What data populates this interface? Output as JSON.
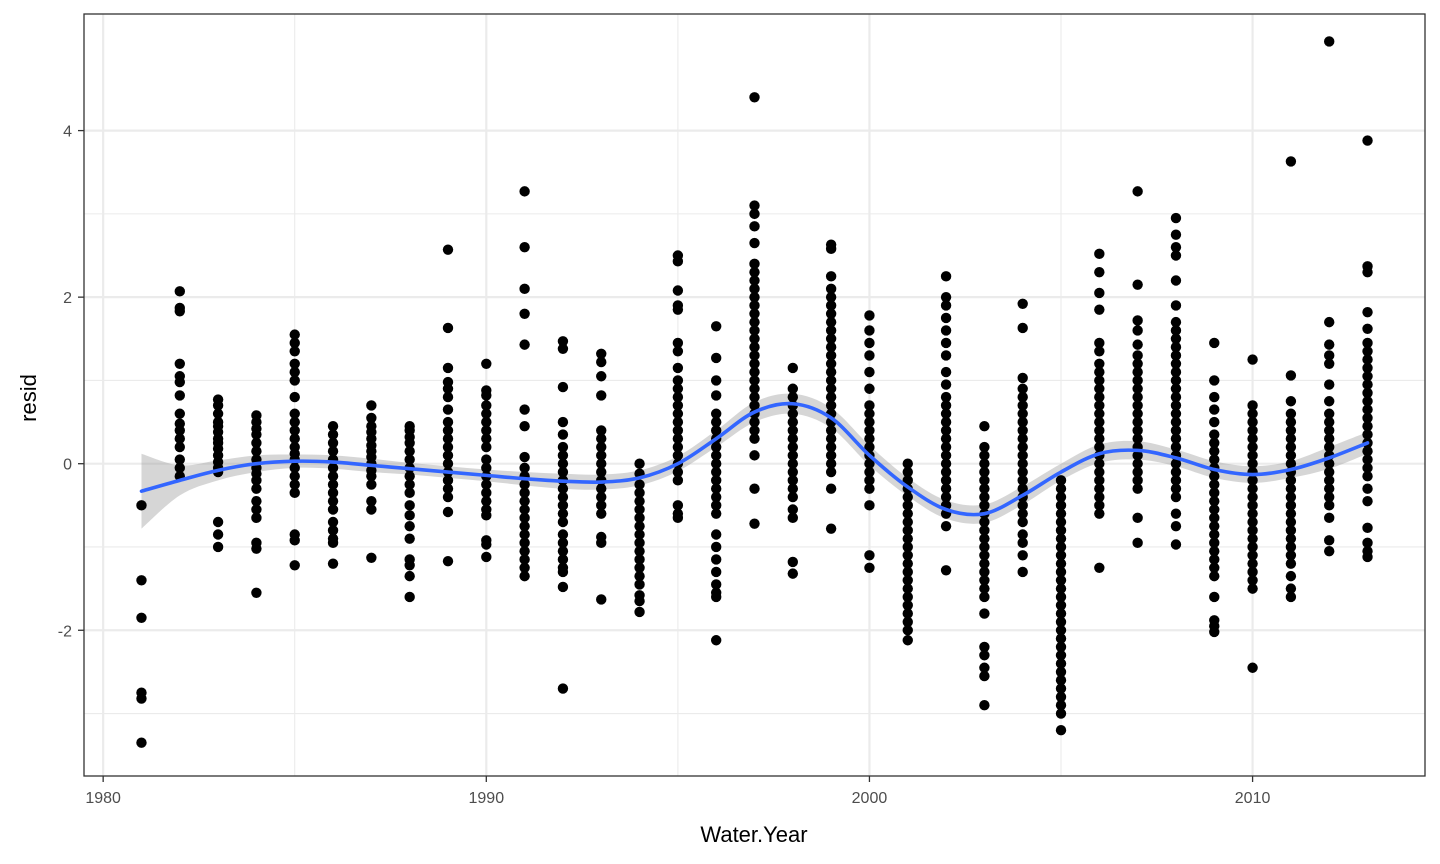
{
  "chart_data": {
    "type": "scatter",
    "xlabel": "Water.Year",
    "ylabel": "resid",
    "xlim": [
      1979.5,
      2014.5
    ],
    "ylim": [
      -3.75,
      5.4
    ],
    "x_ticks": [
      1980,
      1990,
      2000,
      2010
    ],
    "x_tick_labels": [
      "1980",
      "1990",
      "2000",
      "2010"
    ],
    "y_ticks": [
      -2,
      0,
      2,
      4
    ],
    "y_tick_labels": [
      "-2",
      "0",
      "2",
      "4"
    ],
    "grid": true,
    "points": [
      {
        "year": 1981,
        "resid": [
          -0.5,
          -1.4,
          -1.85,
          -2.75,
          -2.82,
          -3.35
        ]
      },
      {
        "year": 1982,
        "resid": [
          2.07,
          1.87,
          1.83,
          1.2,
          1.05,
          0.98,
          0.82,
          0.6,
          0.48,
          0.4,
          0.3,
          0.2,
          0.05,
          -0.05,
          -0.15
        ]
      },
      {
        "year": 1983,
        "resid": [
          0.77,
          0.7,
          0.6,
          0.5,
          0.45,
          0.38,
          0.3,
          0.25,
          0.18,
          0.1,
          0.02,
          -0.05,
          -0.1,
          -0.7,
          -0.85,
          -1.0
        ]
      },
      {
        "year": 1984,
        "resid": [
          0.58,
          0.5,
          0.42,
          0.35,
          0.25,
          0.15,
          0.05,
          -0.05,
          -0.12,
          -0.2,
          -0.3,
          -0.45,
          -0.55,
          -0.65,
          -0.95,
          -1.02,
          -1.55
        ]
      },
      {
        "year": 1985,
        "resid": [
          1.55,
          1.45,
          1.35,
          1.2,
          1.1,
          1.0,
          0.8,
          0.6,
          0.5,
          0.4,
          0.3,
          0.2,
          0.12,
          0.05,
          -0.05,
          -0.15,
          -0.25,
          -0.35,
          -0.85,
          -0.92,
          -1.22
        ]
      },
      {
        "year": 1986,
        "resid": [
          0.45,
          0.35,
          0.25,
          0.15,
          0.05,
          -0.05,
          -0.15,
          -0.25,
          -0.35,
          -0.45,
          -0.55,
          -0.7,
          -0.8,
          -0.9,
          -0.95,
          -1.2
        ]
      },
      {
        "year": 1987,
        "resid": [
          0.7,
          0.55,
          0.45,
          0.38,
          0.3,
          0.22,
          0.15,
          0.08,
          0.0,
          -0.08,
          -0.15,
          -0.25,
          -0.45,
          -0.55,
          -1.13
        ]
      },
      {
        "year": 1988,
        "resid": [
          0.45,
          0.4,
          0.32,
          0.25,
          0.15,
          0.05,
          -0.05,
          -0.15,
          -0.25,
          -0.35,
          -0.5,
          -0.62,
          -0.75,
          -0.9,
          -1.15,
          -1.22,
          -1.35,
          -1.6
        ]
      },
      {
        "year": 1989,
        "resid": [
          2.57,
          1.63,
          1.15,
          0.98,
          0.9,
          0.8,
          0.65,
          0.5,
          0.4,
          0.3,
          0.2,
          0.1,
          0.0,
          -0.1,
          -0.2,
          -0.3,
          -0.4,
          -0.58,
          -1.17
        ]
      },
      {
        "year": 1990,
        "resid": [
          1.2,
          0.88,
          0.82,
          0.7,
          0.6,
          0.5,
          0.4,
          0.3,
          0.2,
          0.05,
          -0.05,
          -0.15,
          -0.25,
          -0.35,
          -0.45,
          -0.55,
          -0.62,
          -0.92,
          -0.97,
          -1.12
        ]
      },
      {
        "year": 1991,
        "resid": [
          3.27,
          2.6,
          2.1,
          1.8,
          1.43,
          0.65,
          0.45,
          0.08,
          -0.05,
          -0.15,
          -0.25,
          -0.35,
          -0.45,
          -0.55,
          -0.65,
          -0.75,
          -0.85,
          -0.95,
          -1.05,
          -1.15,
          -1.25,
          -1.35
        ]
      },
      {
        "year": 1992,
        "resid": [
          1.47,
          1.38,
          0.92,
          0.5,
          0.35,
          0.2,
          0.1,
          0.0,
          -0.1,
          -0.2,
          -0.3,
          -0.4,
          -0.5,
          -0.6,
          -0.7,
          -0.85,
          -0.95,
          -1.05,
          -1.15,
          -1.25,
          -1.3,
          -1.48,
          -2.7
        ]
      },
      {
        "year": 1993,
        "resid": [
          1.32,
          1.22,
          1.05,
          0.82,
          0.4,
          0.3,
          0.2,
          0.1,
          0.0,
          -0.1,
          -0.2,
          -0.3,
          -0.4,
          -0.5,
          -0.6,
          -0.88,
          -0.95,
          -1.63
        ]
      },
      {
        "year": 1994,
        "resid": [
          0.0,
          -0.12,
          -0.25,
          -0.35,
          -0.45,
          -0.55,
          -0.65,
          -0.75,
          -0.85,
          -0.95,
          -1.05,
          -1.15,
          -1.25,
          -1.35,
          -1.45,
          -1.58,
          -1.65,
          -1.78
        ]
      },
      {
        "year": 1995,
        "resid": [
          2.5,
          2.43,
          2.08,
          1.9,
          1.85,
          1.45,
          1.35,
          1.15,
          1.0,
          0.9,
          0.8,
          0.7,
          0.6,
          0.5,
          0.4,
          0.3,
          0.2,
          0.1,
          0.0,
          -0.1,
          -0.2,
          -0.5,
          -0.6,
          -0.65
        ]
      },
      {
        "year": 1996,
        "resid": [
          1.65,
          1.27,
          1.0,
          0.82,
          0.6,
          0.5,
          0.4,
          0.3,
          0.2,
          0.1,
          0.0,
          -0.1,
          -0.2,
          -0.3,
          -0.4,
          -0.5,
          -0.6,
          -0.85,
          -1.0,
          -1.15,
          -1.3,
          -1.45,
          -1.55,
          -1.6,
          -2.12
        ]
      },
      {
        "year": 1997,
        "resid": [
          4.4,
          3.1,
          3.0,
          2.85,
          2.65,
          2.4,
          2.3,
          2.2,
          2.1,
          2.0,
          1.9,
          1.8,
          1.7,
          1.6,
          1.5,
          1.4,
          1.3,
          1.2,
          1.1,
          1.0,
          0.9,
          0.8,
          0.7,
          0.6,
          0.5,
          0.4,
          0.3,
          0.1,
          -0.3,
          -0.72
        ]
      },
      {
        "year": 1998,
        "resid": [
          1.15,
          0.9,
          0.8,
          0.7,
          0.6,
          0.5,
          0.4,
          0.3,
          0.2,
          0.1,
          0.0,
          -0.1,
          -0.2,
          -0.3,
          -0.4,
          -0.55,
          -0.65,
          -1.18,
          -1.32
        ]
      },
      {
        "year": 1999,
        "resid": [
          2.63,
          2.58,
          2.25,
          2.1,
          2.0,
          1.9,
          1.8,
          1.7,
          1.6,
          1.5,
          1.4,
          1.3,
          1.2,
          1.1,
          1.0,
          0.9,
          0.8,
          0.7,
          0.6,
          0.5,
          0.4,
          0.3,
          0.2,
          0.1,
          0.0,
          -0.1,
          -0.3,
          -0.78
        ]
      },
      {
        "year": 2000,
        "resid": [
          1.78,
          1.6,
          1.45,
          1.3,
          1.1,
          0.9,
          0.7,
          0.6,
          0.5,
          0.4,
          0.3,
          0.2,
          0.1,
          0.0,
          -0.1,
          -0.2,
          -0.3,
          -0.5,
          -1.1,
          -1.25
        ]
      },
      {
        "year": 2001,
        "resid": [
          0.0,
          -0.1,
          -0.2,
          -0.3,
          -0.4,
          -0.5,
          -0.6,
          -0.7,
          -0.8,
          -0.9,
          -1.0,
          -1.1,
          -1.2,
          -1.3,
          -1.4,
          -1.5,
          -1.6,
          -1.7,
          -1.8,
          -1.9,
          -2.0,
          -2.12
        ]
      },
      {
        "year": 2002,
        "resid": [
          2.25,
          2.0,
          1.9,
          1.75,
          1.6,
          1.45,
          1.3,
          1.1,
          0.95,
          0.8,
          0.7,
          0.6,
          0.5,
          0.4,
          0.3,
          0.2,
          0.1,
          0.0,
          -0.1,
          -0.2,
          -0.3,
          -0.4,
          -0.5,
          -0.6,
          -0.75,
          -1.28
        ]
      },
      {
        "year": 2003,
        "resid": [
          0.45,
          0.2,
          0.1,
          0.0,
          -0.1,
          -0.2,
          -0.3,
          -0.4,
          -0.5,
          -0.6,
          -0.7,
          -0.8,
          -0.9,
          -1.0,
          -1.1,
          -1.2,
          -1.3,
          -1.4,
          -1.5,
          -1.6,
          -1.8,
          -2.2,
          -2.3,
          -2.45,
          -2.55,
          -2.9
        ]
      },
      {
        "year": 2004,
        "resid": [
          1.92,
          1.63,
          1.03,
          0.9,
          0.8,
          0.7,
          0.6,
          0.5,
          0.4,
          0.3,
          0.2,
          0.1,
          0.0,
          -0.1,
          -0.2,
          -0.3,
          -0.4,
          -0.5,
          -0.6,
          -0.7,
          -0.85,
          -0.95,
          -1.1,
          -1.3
        ]
      },
      {
        "year": 2005,
        "resid": [
          -0.2,
          -0.3,
          -0.4,
          -0.5,
          -0.6,
          -0.7,
          -0.8,
          -0.9,
          -1.0,
          -1.1,
          -1.2,
          -1.3,
          -1.4,
          -1.5,
          -1.6,
          -1.7,
          -1.8,
          -1.9,
          -2.0,
          -2.1,
          -2.2,
          -2.3,
          -2.4,
          -2.5,
          -2.6,
          -2.7,
          -2.8,
          -2.9,
          -3.0,
          -3.2
        ]
      },
      {
        "year": 2006,
        "resid": [
          2.52,
          2.3,
          2.05,
          1.85,
          1.45,
          1.35,
          1.2,
          1.1,
          1.0,
          0.9,
          0.8,
          0.7,
          0.6,
          0.5,
          0.4,
          0.3,
          0.2,
          0.1,
          0.0,
          -0.1,
          -0.2,
          -0.3,
          -0.4,
          -0.5,
          -0.6,
          -1.25
        ]
      },
      {
        "year": 2007,
        "resid": [
          3.27,
          2.15,
          1.72,
          1.6,
          1.43,
          1.3,
          1.2,
          1.1,
          1.0,
          0.9,
          0.8,
          0.7,
          0.6,
          0.5,
          0.4,
          0.3,
          0.2,
          0.1,
          0.0,
          -0.1,
          -0.2,
          -0.3,
          -0.65,
          -0.95
        ]
      },
      {
        "year": 2008,
        "resid": [
          2.95,
          2.75,
          2.6,
          2.5,
          2.2,
          1.9,
          1.7,
          1.6,
          1.5,
          1.4,
          1.3,
          1.2,
          1.1,
          1.0,
          0.9,
          0.8,
          0.7,
          0.6,
          0.5,
          0.4,
          0.3,
          0.2,
          0.1,
          0.0,
          -0.1,
          -0.2,
          -0.3,
          -0.4,
          -0.6,
          -0.75,
          -0.97
        ]
      },
      {
        "year": 2009,
        "resid": [
          1.45,
          1.0,
          0.8,
          0.65,
          0.5,
          0.35,
          0.25,
          0.15,
          0.05,
          -0.05,
          -0.15,
          -0.25,
          -0.35,
          -0.45,
          -0.55,
          -0.65,
          -0.75,
          -0.85,
          -0.95,
          -1.05,
          -1.15,
          -1.25,
          -1.35,
          -1.6,
          -1.88,
          -1.95,
          -2.02
        ]
      },
      {
        "year": 2010,
        "resid": [
          1.25,
          0.7,
          0.6,
          0.5,
          0.4,
          0.3,
          0.2,
          0.1,
          0.0,
          -0.1,
          -0.2,
          -0.3,
          -0.4,
          -0.5,
          -0.6,
          -0.7,
          -0.8,
          -0.9,
          -1.0,
          -1.1,
          -1.2,
          -1.3,
          -1.4,
          -1.5,
          -2.45
        ]
      },
      {
        "year": 2011,
        "resid": [
          3.63,
          1.06,
          0.75,
          0.6,
          0.5,
          0.4,
          0.3,
          0.2,
          0.1,
          0.0,
          -0.1,
          -0.2,
          -0.3,
          -0.4,
          -0.5,
          -0.6,
          -0.7,
          -0.8,
          -0.9,
          -1.0,
          -1.1,
          -1.2,
          -1.35,
          -1.5,
          -1.6
        ]
      },
      {
        "year": 2012,
        "resid": [
          5.07,
          1.7,
          1.43,
          1.3,
          1.2,
          0.95,
          0.75,
          0.6,
          0.5,
          0.4,
          0.3,
          0.2,
          0.1,
          0.0,
          -0.1,
          -0.2,
          -0.3,
          -0.4,
          -0.5,
          -0.65,
          -0.92,
          -1.05
        ]
      },
      {
        "year": 2013,
        "resid": [
          3.88,
          2.37,
          2.3,
          1.82,
          1.62,
          1.45,
          1.35,
          1.25,
          1.15,
          1.05,
          0.95,
          0.85,
          0.75,
          0.65,
          0.55,
          0.45,
          0.35,
          0.25,
          0.15,
          0.05,
          -0.05,
          -0.15,
          -0.3,
          -0.45,
          -0.77,
          -0.95,
          -1.05,
          -1.12
        ]
      }
    ],
    "smooth": {
      "x": [
        1981,
        1982,
        1983,
        1984,
        1985,
        1986,
        1987,
        1988,
        1989,
        1990,
        1991,
        1992,
        1993,
        1994,
        1995,
        1996,
        1997,
        1998,
        1999,
        2000,
        2001,
        2002,
        2003,
        2004,
        2005,
        2006,
        2007,
        2008,
        2009,
        2010,
        2011,
        2012,
        2013
      ],
      "y": [
        -0.33,
        -0.2,
        -0.08,
        0.0,
        0.03,
        0.02,
        -0.02,
        -0.06,
        -0.1,
        -0.14,
        -0.18,
        -0.21,
        -0.22,
        -0.17,
        0.0,
        0.3,
        0.62,
        0.72,
        0.55,
        0.1,
        -0.28,
        -0.55,
        -0.6,
        -0.38,
        -0.1,
        0.12,
        0.16,
        0.07,
        -0.07,
        -0.13,
        -0.07,
        0.07,
        0.25
      ],
      "lower": [
        -0.78,
        -0.38,
        -0.2,
        -0.1,
        -0.05,
        -0.06,
        -0.1,
        -0.13,
        -0.17,
        -0.21,
        -0.26,
        -0.3,
        -0.31,
        -0.26,
        -0.09,
        0.2,
        0.5,
        0.6,
        0.43,
        -0.02,
        -0.39,
        -0.66,
        -0.71,
        -0.49,
        -0.2,
        0.01,
        0.05,
        -0.03,
        -0.17,
        -0.23,
        -0.17,
        -0.06,
        0.12
      ],
      "upper": [
        0.12,
        -0.02,
        0.04,
        0.1,
        0.11,
        0.1,
        0.06,
        0.01,
        -0.03,
        -0.07,
        -0.1,
        -0.12,
        -0.13,
        -0.08,
        0.09,
        0.4,
        0.74,
        0.84,
        0.67,
        0.22,
        -0.17,
        -0.44,
        -0.49,
        -0.27,
        0.0,
        0.23,
        0.27,
        0.17,
        0.03,
        -0.03,
        0.03,
        0.2,
        0.38
      ]
    },
    "colors": {
      "points": "#000000",
      "smooth_line": "#3366ff",
      "confidence_band": "#999999",
      "grid": "#ebebeb",
      "panel_border": "#333333"
    }
  }
}
